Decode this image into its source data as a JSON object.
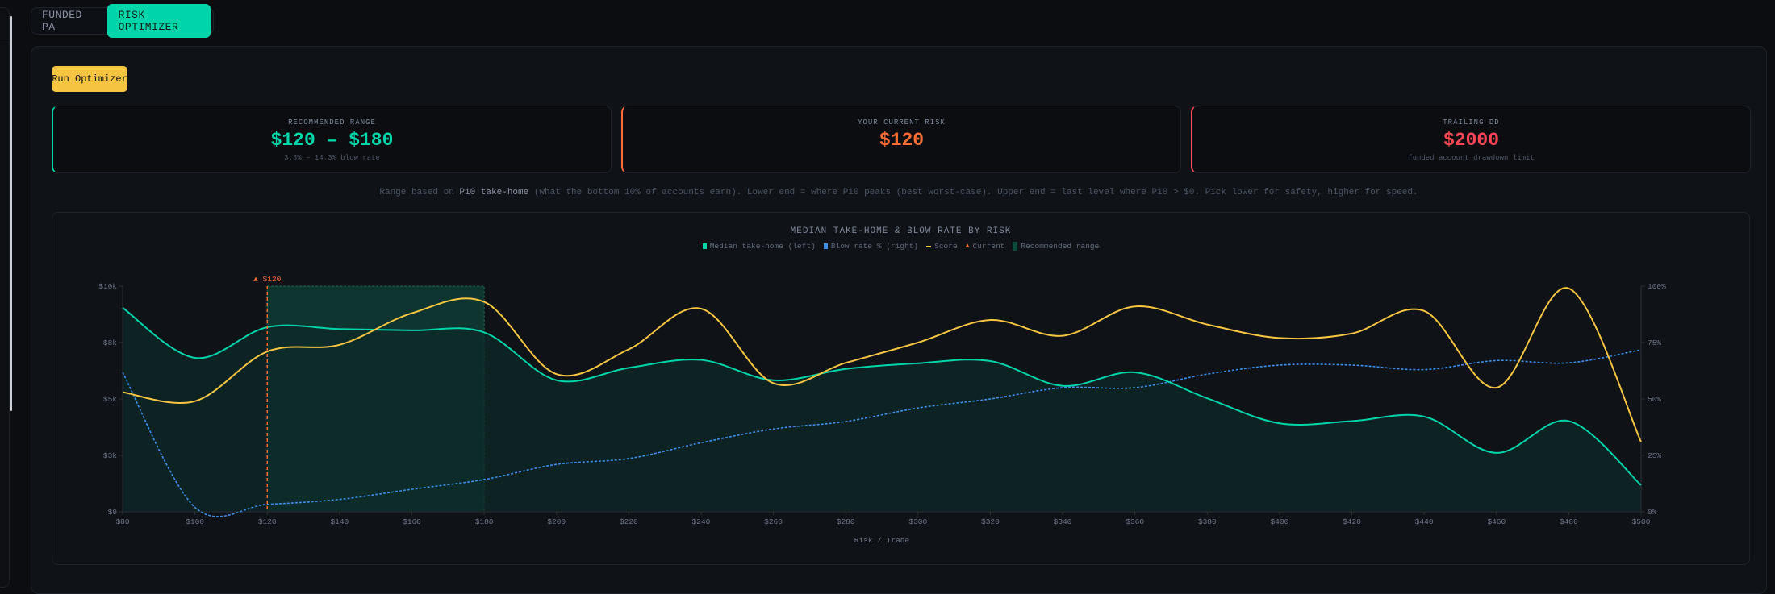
{
  "tabs": [
    {
      "label": "FUNDED PA",
      "active": false
    },
    {
      "label": "RISK OPTIMIZER",
      "active": true
    }
  ],
  "run_button": "Run Optimizer",
  "stats": [
    {
      "label": "RECOMMENDED RANGE",
      "value": "$120 – $180",
      "sub": "3.3% – 14.3% blow rate",
      "color": "#00d4aa"
    },
    {
      "label": "YOUR CURRENT RISK",
      "value": "$120",
      "sub": "",
      "color": "#ff6b35"
    },
    {
      "label": "TRAILING DD",
      "value": "$2000",
      "sub": "funded account drawdown limit",
      "color": "#ff4757"
    }
  ],
  "note": {
    "pre": "Range based on ",
    "strong": "P10 take-home",
    "post": " (what the bottom 10% of accounts earn). Lower end = where P10 peaks (best worst-case). Upper end = last level where P10 > $0. Pick lower for safety, higher for speed."
  },
  "colors": {
    "median": "#00d4aa",
    "blow": "#3b8eea",
    "score": "#f5c542",
    "current": "#ff6b35",
    "range": "#0e3a32"
  },
  "chart_data": {
    "type": "line",
    "title": "MEDIAN TAKE-HOME & BLOW RATE BY RISK",
    "legend": [
      "Median take-home (left)",
      "Blow rate % (right)",
      "Score",
      "Current",
      "Recommended range"
    ],
    "xlabel": "Risk / Trade",
    "x": [
      80,
      100,
      120,
      140,
      160,
      180,
      200,
      220,
      240,
      260,
      280,
      300,
      320,
      340,
      360,
      380,
      400,
      420,
      440,
      460,
      480,
      500
    ],
    "x_tick_labels": [
      "$80",
      "$100",
      "$120",
      "$140",
      "$160",
      "$180",
      "$200",
      "$220",
      "$240",
      "$260",
      "$280",
      "$300",
      "$320",
      "$340",
      "$360",
      "$380",
      "$400",
      "$420",
      "$440",
      "$460",
      "$480",
      "$500"
    ],
    "y_left": {
      "range": [
        0,
        10000
      ],
      "ticks": [
        0,
        2500,
        5000,
        7500,
        10000
      ],
      "tick_labels": [
        "$0",
        "$3k",
        "$5k",
        "$8k",
        "$10k"
      ]
    },
    "y_right": {
      "range": [
        0,
        100
      ],
      "ticks": [
        0,
        25,
        50,
        75,
        100
      ],
      "tick_labels": [
        "0%",
        "25%",
        "50%",
        "75%",
        "100%"
      ]
    },
    "series": [
      {
        "name": "Median take-home (left)",
        "axis": "left",
        "values": [
          9040,
          6820,
          8180,
          8100,
          8040,
          7950,
          5830,
          6380,
          6730,
          5830,
          6330,
          6580,
          6680,
          5580,
          6180,
          5030,
          3920,
          4020,
          4220,
          2610,
          4020,
          1180
        ]
      },
      {
        "name": "Blow rate % (right)",
        "axis": "right",
        "values": [
          61.8,
          2.0,
          3.3,
          5.5,
          10.0,
          14.3,
          21,
          23.6,
          30.6,
          36.7,
          40,
          46,
          50,
          55,
          55,
          61,
          65,
          65,
          63,
          67,
          66,
          71.8
        ]
      },
      {
        "name": "Score",
        "axis": "normalized",
        "values": [
          53,
          49,
          71,
          74,
          88,
          93,
          61,
          72,
          90,
          57,
          66,
          75,
          85,
          78,
          91,
          83,
          77,
          79,
          89,
          55,
          99,
          31
        ]
      }
    ],
    "current": {
      "x": 120,
      "label": "▲ $120"
    },
    "recommended_range": [
      120,
      180
    ],
    "grid": false
  }
}
